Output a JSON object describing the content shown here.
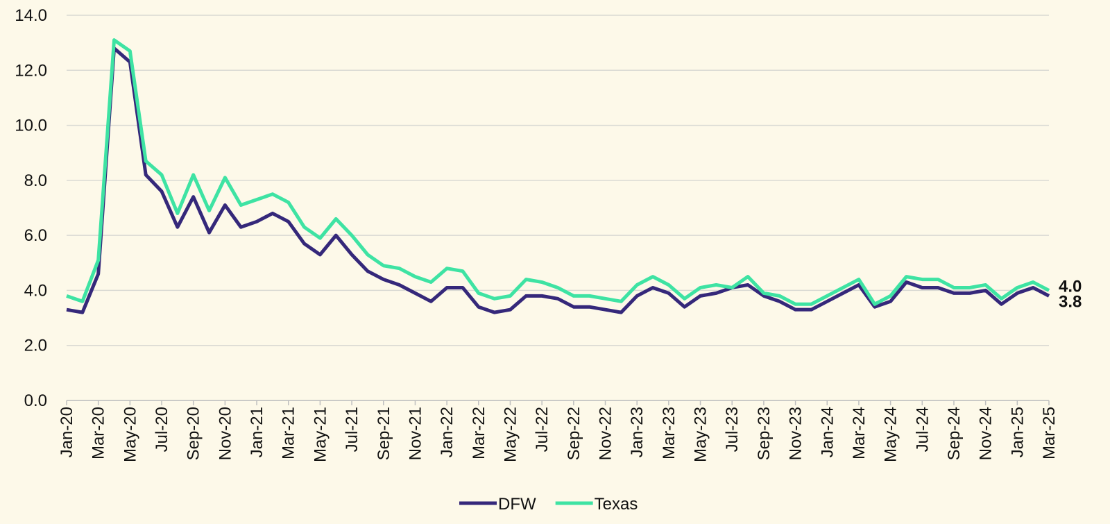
{
  "chart_data": {
    "type": "line",
    "categories": [
      "Jan-20",
      null,
      "Mar-20",
      null,
      "May-20",
      null,
      "Jul-20",
      null,
      "Sep-20",
      null,
      "Nov-20",
      null,
      "Jan-21",
      null,
      "Mar-21",
      null,
      "May-21",
      null,
      "Jul-21",
      null,
      "Sep-21",
      null,
      "Nov-21",
      null,
      "Jan-22",
      null,
      "Mar-22",
      null,
      "May-22",
      null,
      "Jul-22",
      null,
      "Sep-22",
      null,
      "Nov-22",
      null,
      "Jan-23",
      null,
      "Mar-23",
      null,
      "May-23",
      null,
      "Jul-23",
      null,
      "Sep-23",
      null,
      "Nov-23",
      null,
      "Jan-24",
      null,
      "Mar-24",
      null,
      "May-24",
      null,
      "Jul-24",
      null,
      "Sep-24",
      null,
      "Nov-24",
      null,
      "Jan-25",
      null,
      "Mar-25"
    ],
    "series": [
      {
        "name": "DFW",
        "color": "#35287a",
        "values": [
          3.3,
          3.2,
          4.6,
          12.8,
          12.3,
          8.2,
          7.6,
          6.3,
          7.4,
          6.1,
          7.1,
          6.3,
          6.5,
          6.8,
          6.5,
          5.7,
          5.3,
          6.0,
          5.3,
          4.7,
          4.4,
          4.2,
          3.9,
          3.6,
          4.1,
          4.1,
          3.4,
          3.2,
          3.3,
          3.8,
          3.8,
          3.7,
          3.4,
          3.4,
          3.3,
          3.2,
          3.8,
          4.1,
          3.9,
          3.4,
          3.8,
          3.9,
          4.1,
          4.2,
          3.8,
          3.6,
          3.3,
          3.3,
          3.6,
          3.9,
          4.2,
          3.4,
          3.6,
          4.3,
          4.1,
          4.1,
          3.9,
          3.9,
          4.0,
          3.5,
          3.9,
          4.1,
          3.8
        ],
        "value_labels": [
          null,
          null,
          null,
          null,
          null,
          null,
          null,
          null,
          null,
          null,
          null,
          null,
          null,
          null,
          null,
          null,
          null,
          null,
          null,
          null,
          null,
          null,
          null,
          null,
          null,
          null,
          null,
          null,
          null,
          null,
          null,
          null,
          null,
          null,
          null,
          null,
          null,
          null,
          null,
          null,
          null,
          null,
          null,
          null,
          null,
          null,
          null,
          null,
          null,
          null,
          null,
          null,
          null,
          null,
          null,
          null,
          null,
          null,
          null,
          null,
          null,
          null,
          "3.8"
        ]
      },
      {
        "name": "Texas",
        "color": "#3ee3a3",
        "values": [
          3.8,
          3.6,
          5.1,
          13.1,
          12.7,
          8.7,
          8.2,
          6.8,
          8.2,
          6.9,
          8.1,
          7.1,
          7.3,
          7.5,
          7.2,
          6.3,
          5.9,
          6.6,
          6.0,
          5.3,
          4.9,
          4.8,
          4.5,
          4.3,
          4.8,
          4.7,
          3.9,
          3.7,
          3.8,
          4.4,
          4.3,
          4.1,
          3.8,
          3.8,
          3.7,
          3.6,
          4.2,
          4.5,
          4.2,
          3.7,
          4.1,
          4.2,
          4.1,
          4.5,
          3.9,
          3.8,
          3.5,
          3.5,
          3.8,
          4.1,
          4.4,
          3.5,
          3.8,
          4.5,
          4.4,
          4.4,
          4.1,
          4.1,
          4.2,
          3.7,
          4.1,
          4.3,
          4.0
        ],
        "value_labels": [
          null,
          null,
          null,
          null,
          null,
          null,
          null,
          null,
          null,
          null,
          null,
          null,
          null,
          null,
          null,
          null,
          null,
          null,
          null,
          null,
          null,
          null,
          null,
          null,
          null,
          null,
          null,
          null,
          null,
          null,
          null,
          null,
          null,
          null,
          null,
          null,
          null,
          null,
          null,
          null,
          null,
          null,
          null,
          null,
          null,
          null,
          null,
          null,
          null,
          null,
          null,
          null,
          null,
          null,
          null,
          null,
          null,
          null,
          null,
          null,
          null,
          null,
          "4.0"
        ]
      }
    ],
    "ylim": [
      0,
      14
    ],
    "yticks": [
      {
        "value": 0,
        "label": "0.0"
      },
      {
        "value": 2,
        "label": "2.0"
      },
      {
        "value": 4,
        "label": "4.0"
      },
      {
        "value": 6,
        "label": "6.0"
      },
      {
        "value": 8,
        "label": "8.0"
      },
      {
        "value": 10,
        "label": "10.0"
      },
      {
        "value": 12,
        "label": "12.0"
      },
      {
        "value": 14,
        "label": "14.0"
      }
    ],
    "grid": true,
    "legend": "bottom"
  }
}
